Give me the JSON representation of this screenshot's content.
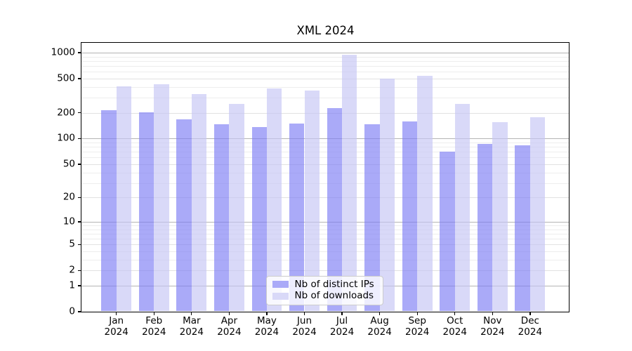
{
  "chart_data": {
    "type": "bar",
    "title": "XML 2024",
    "categories": [
      "Jan",
      "Feb",
      "Mar",
      "Apr",
      "May",
      "Jun",
      "Jul",
      "Aug",
      "Sep",
      "Oct",
      "Nov",
      "Dec"
    ],
    "category_year": "2024",
    "series": [
      {
        "name": "Nb of distinct IPs",
        "color": "#aaaaf8",
        "fill_rgba": "rgba(125,125,244,0.65)",
        "values": [
          213,
          203,
          168,
          146,
          137,
          151,
          226,
          147,
          160,
          71,
          86,
          84
        ]
      },
      {
        "name": "Nb of downloads",
        "color": "#d9d9f8",
        "fill_rgba": "rgba(197,197,244,0.65)",
        "values": [
          405,
          433,
          330,
          252,
          387,
          364,
          950,
          495,
          536,
          253,
          156,
          179
        ]
      }
    ],
    "xlabel": "",
    "ylabel": "",
    "y_axis": {
      "scale": "log10(value+1)",
      "ticks": [
        1000,
        500,
        200,
        100,
        50,
        20,
        10,
        5,
        2,
        1,
        0
      ],
      "major_gridlines": [
        1000,
        100,
        10,
        1
      ],
      "light_gridlines": [
        500,
        200,
        50,
        20,
        5,
        2
      ],
      "minor_gridlines": [
        900,
        800,
        700,
        600,
        400,
        300,
        90,
        80,
        70,
        60,
        40,
        30,
        9,
        8,
        7,
        6,
        4,
        3
      ],
      "range": [
        0,
        1300
      ]
    },
    "legend": {
      "position": "lower center inside",
      "entries": [
        "Nb of distinct IPs",
        "Nb of downloads"
      ]
    },
    "grid": true
  }
}
